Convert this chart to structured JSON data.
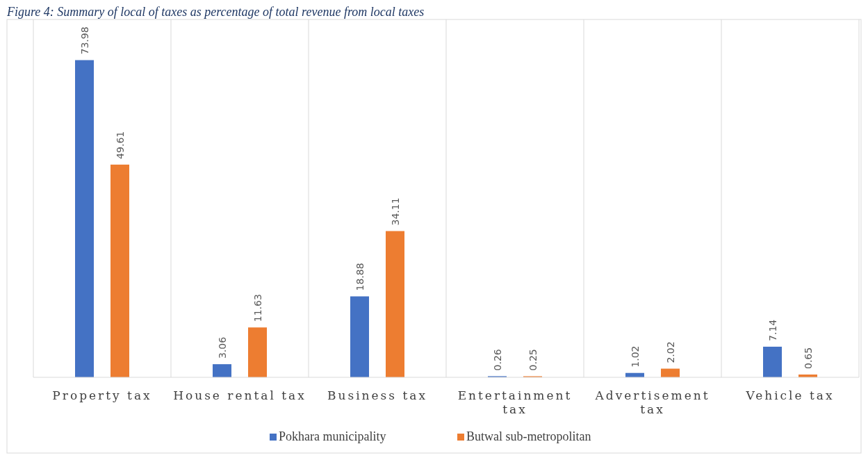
{
  "chart_data": {
    "type": "bar",
    "title": "Figure 4: Summary of local of taxes as percentage of total revenue from local taxes",
    "categories": [
      "Property tax",
      "House rental tax",
      "Business tax",
      "Entertainment tax",
      "Advertisement tax",
      "Vehicle tax"
    ],
    "series": [
      {
        "name": "Pokhara municipality",
        "color": "#4472c4",
        "values": [
          73.98,
          3.06,
          18.88,
          0.26,
          1.02,
          7.14
        ]
      },
      {
        "name": "Butwal sub-metropolitan",
        "color": "#ed7d31",
        "values": [
          49.61,
          11.63,
          34.11,
          0.25,
          2.02,
          0.65
        ]
      }
    ],
    "data_labels": true,
    "grid": "x",
    "legend": "bottom"
  }
}
